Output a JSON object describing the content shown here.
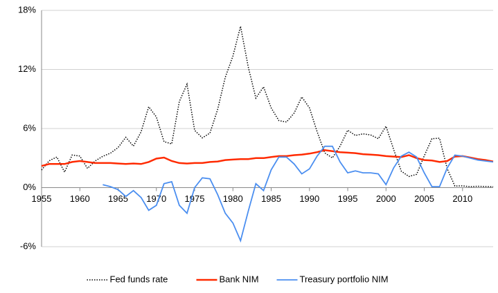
{
  "chart_data": {
    "type": "line",
    "x": [
      1955,
      1956,
      1957,
      1958,
      1959,
      1960,
      1961,
      1962,
      1963,
      1964,
      1965,
      1966,
      1967,
      1968,
      1969,
      1970,
      1971,
      1972,
      1973,
      1974,
      1975,
      1976,
      1977,
      1978,
      1979,
      1980,
      1981,
      1982,
      1983,
      1984,
      1985,
      1986,
      1987,
      1988,
      1989,
      1990,
      1991,
      1992,
      1993,
      1994,
      1995,
      1996,
      1997,
      1998,
      1999,
      2000,
      2001,
      2002,
      2003,
      2004,
      2005,
      2006,
      2007,
      2008,
      2009,
      2010,
      2011,
      2012,
      2013,
      2014
    ],
    "series": [
      {
        "name": "Fed funds rate",
        "color": "#000000",
        "style": "dotted",
        "values": [
          1.79,
          2.73,
          3.11,
          1.57,
          3.31,
          3.21,
          1.95,
          2.71,
          3.18,
          3.5,
          4.07,
          5.11,
          4.22,
          5.66,
          8.21,
          7.17,
          4.67,
          4.44,
          8.74,
          10.51,
          5.82,
          5.05,
          5.54,
          7.93,
          11.19,
          13.36,
          16.38,
          12.26,
          9.09,
          10.23,
          8.1,
          6.81,
          6.66,
          7.57,
          9.21,
          8.1,
          5.69,
          3.52,
          3.02,
          4.21,
          5.83,
          5.3,
          5.46,
          5.35,
          4.97,
          6.24,
          3.88,
          1.67,
          1.13,
          1.35,
          3.22,
          4.97,
          5.02,
          1.92,
          0.16,
          0.18,
          0.1,
          0.14,
          0.11,
          0.09
        ]
      },
      {
        "name": "Bank NIM",
        "color": "#ff2a00",
        "style": "solid",
        "values": [
          2.2,
          2.4,
          2.4,
          2.4,
          2.6,
          2.7,
          2.6,
          2.5,
          2.5,
          2.5,
          2.45,
          2.4,
          2.45,
          2.4,
          2.6,
          2.95,
          3.05,
          2.7,
          2.5,
          2.45,
          2.5,
          2.5,
          2.6,
          2.65,
          2.8,
          2.85,
          2.9,
          2.9,
          3.0,
          3.0,
          3.1,
          3.2,
          3.2,
          3.3,
          3.35,
          3.45,
          3.6,
          3.8,
          3.7,
          3.6,
          3.55,
          3.5,
          3.4,
          3.35,
          3.3,
          3.2,
          3.15,
          3.1,
          3.3,
          3.0,
          2.8,
          2.75,
          2.6,
          2.7,
          3.15,
          3.2,
          3.05,
          2.9,
          2.8,
          2.65
        ]
      },
      {
        "name": "Treasury portfolio NIM",
        "color": "#4a8ef0",
        "style": "solid",
        "values": [
          null,
          null,
          null,
          null,
          null,
          null,
          null,
          null,
          0.3,
          0.1,
          -0.2,
          -0.9,
          -0.3,
          -1.0,
          -2.3,
          -1.8,
          0.4,
          0.6,
          -1.8,
          -2.6,
          0.0,
          1.0,
          0.9,
          -0.7,
          -2.6,
          -3.6,
          -5.4,
          -2.4,
          0.4,
          -0.3,
          1.8,
          3.1,
          3.1,
          2.4,
          1.4,
          1.9,
          3.2,
          4.2,
          4.2,
          2.6,
          1.5,
          1.7,
          1.5,
          1.5,
          1.4,
          0.3,
          2.0,
          3.2,
          3.6,
          3.1,
          1.5,
          0.1,
          0.1,
          2.0,
          3.3,
          3.2,
          3.0,
          2.8,
          2.7,
          2.6
        ]
      }
    ],
    "xlim": [
      1955,
      2014
    ],
    "xticks": [
      1955,
      1960,
      1965,
      1970,
      1975,
      1980,
      1985,
      1990,
      1995,
      2000,
      2005,
      2010
    ],
    "ylim": [
      -6,
      18
    ],
    "yticks": [
      {
        "value": -6,
        "label": "-6%"
      },
      {
        "value": 0,
        "label": "0%"
      },
      {
        "value": 6,
        "label": "6%"
      },
      {
        "value": 12,
        "label": "12%"
      },
      {
        "value": 18,
        "label": "18%"
      }
    ],
    "grid": true,
    "legend": "bottom"
  }
}
